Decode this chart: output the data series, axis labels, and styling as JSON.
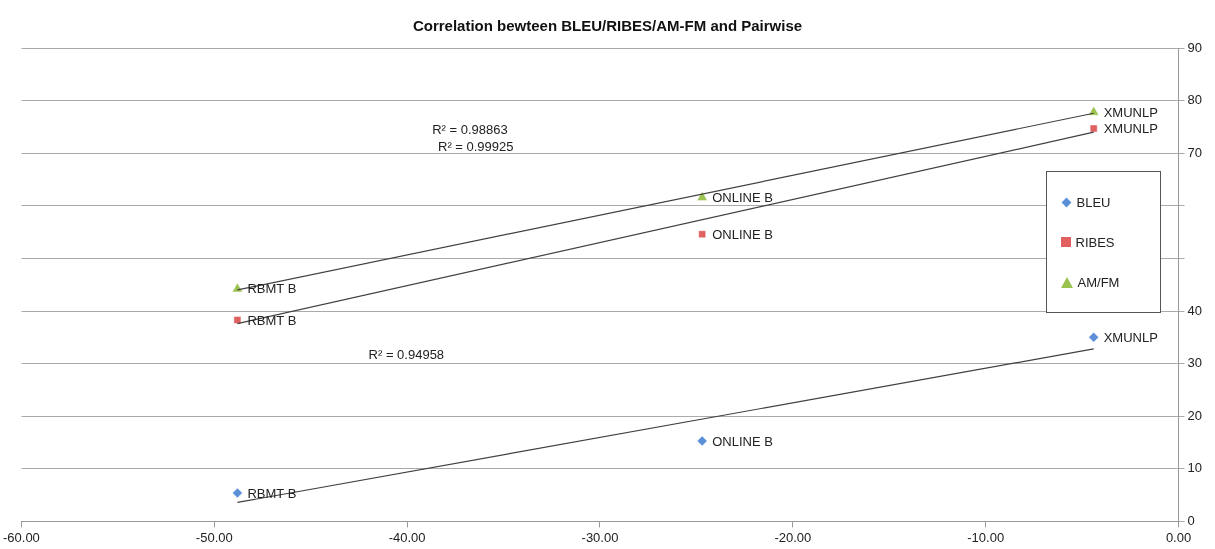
{
  "chart_data": {
    "type": "scatter",
    "title": "Correlation bewteen BLEU/RIBES/AM-FM and Pairwise",
    "series": [
      {
        "name": "BLEU",
        "color": "#5b8fd8",
        "marker": "diamond",
        "x": [
          -48.8,
          -24.7,
          -4.4
        ],
        "values": [
          5.4,
          15.3,
          35.0
        ]
      },
      {
        "name": "RIBES",
        "color": "#e06060",
        "marker": "square",
        "x": [
          -48.8,
          -24.7,
          -4.4
        ],
        "values": [
          38.3,
          54.6,
          74.7
        ]
      },
      {
        "name": "AM/FM",
        "color": "#9bc34f",
        "marker": "triangle",
        "x": [
          -48.8,
          -24.7,
          -4.4
        ],
        "values": [
          44.2,
          61.6,
          77.8
        ]
      },
      {
        "type": "line",
        "color": "#404040",
        "marker": "none",
        "x": [
          -48.8,
          -4.4
        ],
        "values": [
          3.6,
          32.8
        ]
      },
      {
        "type": "line",
        "color": "#404040",
        "marker": "none",
        "x": [
          -48.8,
          -4.4
        ],
        "values": [
          37.6,
          74.0
        ]
      },
      {
        "type": "line",
        "color": "#404040",
        "marker": "none",
        "x": [
          -48.8,
          -4.4
        ],
        "values": [
          44.0,
          77.6
        ]
      }
    ],
    "xlim": [
      -60,
      0
    ],
    "xticks": [
      {
        "value": -60,
        "label": "-60.00"
      },
      {
        "value": -50,
        "label": "-50.00"
      },
      {
        "value": -40,
        "label": "-40.00"
      },
      {
        "value": -30,
        "label": "-30.00"
      },
      {
        "value": -20,
        "label": "-20.00"
      },
      {
        "value": -10,
        "label": "-10.00"
      },
      {
        "value": 0,
        "label": "0.00"
      }
    ],
    "ylim": [
      0,
      90
    ],
    "yticks": [
      0,
      10,
      20,
      30,
      40,
      {
        "value": 50,
        "label": null
      },
      {
        "value": 60,
        "label": null
      },
      70,
      80,
      90
    ],
    "grid": "y",
    "legend": "right",
    "annotations": [
      {
        "text": "RBMT B",
        "x": -48.8,
        "y": 5.4
      },
      {
        "text": "ONLINE B",
        "x": -24.7,
        "y": 15.3
      },
      {
        "text": "XMUNLP",
        "x": -4.4,
        "y": 35.0
      },
      {
        "text": "RBMT B",
        "x": -48.8,
        "y": 38.3
      },
      {
        "text": "ONLINE B",
        "x": -24.7,
        "y": 54.6
      },
      {
        "text": "XMUNLP",
        "x": -4.4,
        "y": 74.7
      },
      {
        "text": "RBMT B",
        "x": -48.8,
        "y": 44.2
      },
      {
        "text": "ONLINE B",
        "x": -24.7,
        "y": 61.6
      },
      {
        "text": "XMUNLP",
        "x": -4.4,
        "y": 77.8
      },
      "R² = 0.98863",
      "R² = 0.99925",
      "R² = 0.94958"
    ]
  }
}
